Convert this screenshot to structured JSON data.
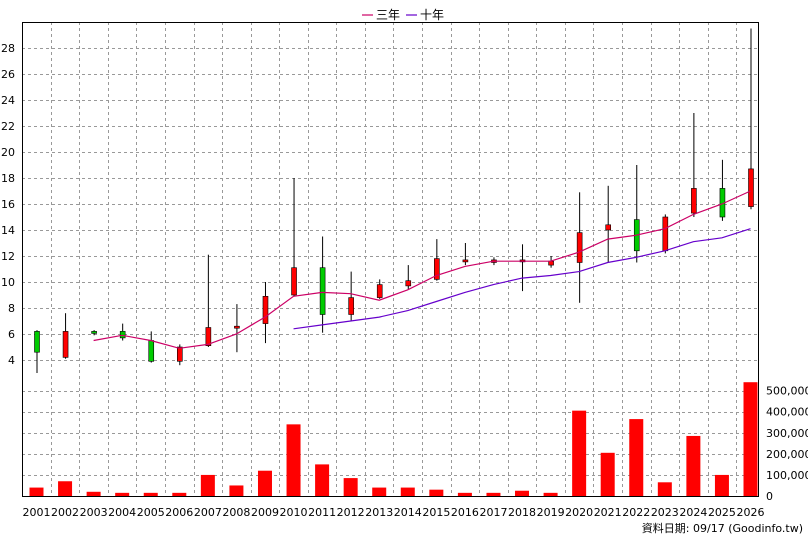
{
  "legend": {
    "ma3": "三年",
    "ma10": "十年"
  },
  "source_note": "資料日期: 09/17  (Goodinfo.tw)",
  "colors": {
    "up": "#ff0000",
    "down": "#00cc00",
    "ma3": "#cc0066",
    "ma10": "#6600cc",
    "volume": "#ff0000",
    "grid": "#999999"
  },
  "chart_data": {
    "type": "candlestick",
    "categories": [
      "2001",
      "2002",
      "2003",
      "2004",
      "2005",
      "2006",
      "2007",
      "2008",
      "2009",
      "2010",
      "2011",
      "2012",
      "2013",
      "2014",
      "2015",
      "2016",
      "2017",
      "2018",
      "2019",
      "2020",
      "2021",
      "2022",
      "2023",
      "2024",
      "2025",
      "2026"
    ],
    "ohlc": [
      {
        "open": 6.2,
        "high": 6.3,
        "low": 3.0,
        "close": 4.6
      },
      {
        "open": 4.2,
        "high": 7.6,
        "low": 4.1,
        "close": 6.2
      },
      {
        "open": 6.2,
        "high": 6.3,
        "low": 5.9,
        "close": 6.1
      },
      {
        "open": 6.2,
        "high": 6.8,
        "low": 5.5,
        "close": 5.7
      },
      {
        "open": 5.5,
        "high": 6.2,
        "low": 3.8,
        "close": 3.9
      },
      {
        "open": 3.9,
        "high": 5.2,
        "low": 3.6,
        "close": 5.0
      },
      {
        "open": 5.1,
        "high": 12.1,
        "low": 5.0,
        "close": 6.5
      },
      {
        "open": 6.6,
        "high": 8.3,
        "low": 4.6,
        "close": 6.6
      },
      {
        "open": 6.8,
        "high": 10.0,
        "low": 5.3,
        "close": 8.9
      },
      {
        "open": 9.0,
        "high": 18.0,
        "low": 8.9,
        "close": 11.1
      },
      {
        "open": 11.1,
        "high": 13.5,
        "low": 6.1,
        "close": 7.5
      },
      {
        "open": 7.5,
        "high": 10.8,
        "low": 7.0,
        "close": 8.8
      },
      {
        "open": 8.8,
        "high": 10.2,
        "low": 8.7,
        "close": 9.8
      },
      {
        "open": 9.7,
        "high": 11.3,
        "low": 9.4,
        "close": 10.1
      },
      {
        "open": 10.2,
        "high": 13.3,
        "low": 10.1,
        "close": 11.8
      },
      {
        "open": 11.6,
        "high": 13.0,
        "low": 11.3,
        "close": 11.7
      },
      {
        "open": 11.5,
        "high": 11.9,
        "low": 11.3,
        "close": 11.7
      },
      {
        "open": 11.6,
        "high": 12.9,
        "low": 9.3,
        "close": 11.7
      },
      {
        "open": 11.3,
        "high": 12.0,
        "low": 11.1,
        "close": 11.6
      },
      {
        "open": 11.5,
        "high": 16.9,
        "low": 8.4,
        "close": 13.8
      },
      {
        "open": 14.0,
        "high": 17.4,
        "low": 11.5,
        "close": 14.4
      },
      {
        "open": 14.8,
        "high": 19.0,
        "low": 11.5,
        "close": 12.4
      },
      {
        "open": 12.4,
        "high": 15.2,
        "low": 12.2,
        "close": 15.0
      },
      {
        "open": 15.3,
        "high": 23.0,
        "low": 15.0,
        "close": 17.2
      },
      {
        "open": 17.2,
        "high": 19.4,
        "low": 14.7,
        "close": 15.0
      },
      {
        "open": 15.8,
        "high": 29.5,
        "low": 15.6,
        "close": 18.7
      }
    ],
    "ma3": [
      null,
      null,
      5.5,
      5.9,
      5.5,
      4.9,
      5.2,
      6.0,
      7.3,
      8.9,
      9.2,
      9.1,
      8.6,
      9.4,
      10.5,
      11.2,
      11.6,
      11.6,
      11.6,
      12.3,
      13.3,
      13.6,
      14.1,
      15.2,
      16.0,
      17.0
    ],
    "ma10": [
      null,
      null,
      null,
      null,
      null,
      null,
      null,
      null,
      null,
      6.4,
      6.7,
      7.0,
      7.3,
      7.8,
      8.5,
      9.2,
      9.8,
      10.3,
      10.5,
      10.8,
      11.5,
      11.9,
      12.4,
      13.1,
      13.4,
      14.1
    ],
    "volume": [
      40000,
      70000,
      20000,
      15000,
      15000,
      15000,
      100000,
      50000,
      120000,
      340000,
      150000,
      85000,
      40000,
      40000,
      30000,
      15000,
      15000,
      25000,
      15000,
      405000,
      205000,
      365000,
      65000,
      285000,
      100000,
      540000
    ],
    "price_axis": {
      "min": 2,
      "max": 30,
      "ticks": [
        4,
        6,
        8,
        10,
        12,
        14,
        16,
        18,
        20,
        22,
        24,
        26,
        28
      ]
    },
    "volume_axis": {
      "min": 0,
      "max": 560000,
      "ticks": [
        0,
        100000,
        200000,
        300000,
        400000,
        500000
      ],
      "tick_labels": [
        "0",
        "100,000",
        "200,000",
        "300,000",
        "400,000",
        "500,000"
      ]
    }
  }
}
